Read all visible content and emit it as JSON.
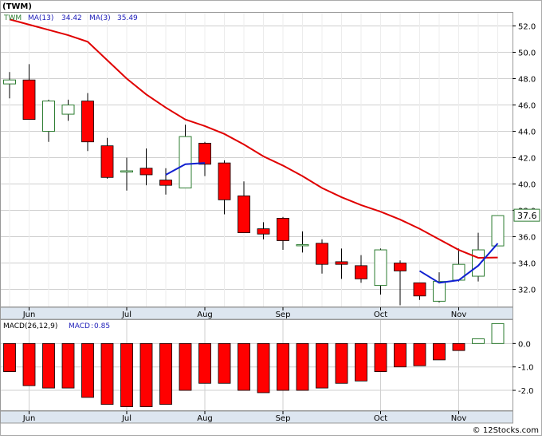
{
  "ticker_label": "(TWM)",
  "footer": "© 12Stocks.com",
  "colors": {
    "up_candle_stroke": "#2e7d32",
    "down_candle_fill": "#ff0000",
    "ma13": "#e00000",
    "ma3": "#1020d0",
    "macd_bar": "#ff0000",
    "grid": "#cfcfcf",
    "axis_band": "#dde6f0",
    "last_price_box": "#2e7d32"
  },
  "chart_data": [
    {
      "type": "candlestick",
      "title": "",
      "legend": [
        {
          "name": "TWM",
          "value": ""
        },
        {
          "name": "MA(13)",
          "value": "34.42"
        },
        {
          "name": "MA(3)",
          "value": "35.49"
        }
      ],
      "x_tick_labels": [
        {
          "label": "Jun",
          "index": 1
        },
        {
          "label": "Jul",
          "index": 6
        },
        {
          "label": "Aug",
          "index": 10
        },
        {
          "label": "Sep",
          "index": 14
        },
        {
          "label": "Oct",
          "index": 19
        },
        {
          "label": "Nov",
          "index": 23
        }
      ],
      "ylim": [
        30.7,
        53.0
      ],
      "y_ticks": [
        32.0,
        34.0,
        36.0,
        38.0,
        40.0,
        42.0,
        44.0,
        46.0,
        48.0,
        50.0,
        52.0
      ],
      "last_price_label": "37.6",
      "grid": true,
      "candles": [
        {
          "open": 47.6,
          "close": 47.9,
          "high": 48.5,
          "low": 46.5
        },
        {
          "open": 47.9,
          "close": 44.9,
          "high": 49.1,
          "low": 44.9
        },
        {
          "open": 44.0,
          "close": 46.3,
          "high": 46.4,
          "low": 43.2
        },
        {
          "open": 45.3,
          "close": 46.0,
          "high": 46.4,
          "low": 44.8
        },
        {
          "open": 46.3,
          "close": 43.2,
          "high": 46.9,
          "low": 42.5
        },
        {
          "open": 42.9,
          "close": 40.5,
          "high": 43.5,
          "low": 40.4
        },
        {
          "open": 41.0,
          "close": 41.0,
          "high": 42.0,
          "low": 39.5
        },
        {
          "open": 41.2,
          "close": 40.7,
          "high": 42.7,
          "low": 39.9
        },
        {
          "open": 40.3,
          "close": 39.9,
          "high": 41.2,
          "low": 39.2
        },
        {
          "open": 39.7,
          "close": 43.6,
          "high": 44.5,
          "low": 39.7
        },
        {
          "open": 43.1,
          "close": 41.5,
          "high": 43.2,
          "low": 40.6
        },
        {
          "open": 41.6,
          "close": 38.8,
          "high": 41.8,
          "low": 37.7
        },
        {
          "open": 39.1,
          "close": 36.3,
          "high": 40.2,
          "low": 36.3
        },
        {
          "open": 36.6,
          "close": 36.2,
          "high": 37.1,
          "low": 35.8
        },
        {
          "open": 37.4,
          "close": 35.7,
          "high": 37.5,
          "low": 35.0
        },
        {
          "open": 35.4,
          "close": 35.4,
          "high": 36.4,
          "low": 34.8
        },
        {
          "open": 35.5,
          "close": 33.9,
          "high": 35.8,
          "low": 33.2
        },
        {
          "open": 34.1,
          "close": 33.9,
          "high": 35.1,
          "low": 32.8
        },
        {
          "open": 33.8,
          "close": 32.8,
          "high": 34.6,
          "low": 32.5
        },
        {
          "open": 32.3,
          "close": 35.0,
          "high": 35.1,
          "low": 31.6
        },
        {
          "open": 34.0,
          "close": 33.4,
          "high": 34.2,
          "low": 30.8
        },
        {
          "open": 32.5,
          "close": 31.5,
          "high": 32.5,
          "low": 31.2
        },
        {
          "open": 31.1,
          "close": 32.6,
          "high": 33.3,
          "low": 31.0
        },
        {
          "open": 32.7,
          "close": 33.9,
          "high": 35.1,
          "low": 32.6
        },
        {
          "open": 33.0,
          "close": 35.0,
          "high": 36.3,
          "low": 32.6
        },
        {
          "open": 35.3,
          "close": 37.6,
          "high": 37.6,
          "low": 35.3
        }
      ],
      "ma13": [
        52.5,
        52.1,
        51.7,
        51.3,
        50.8,
        49.4,
        48.0,
        46.8,
        45.8,
        44.9,
        44.4,
        43.8,
        43.0,
        42.1,
        41.4,
        40.6,
        39.7,
        39.0,
        38.4,
        37.9,
        37.3,
        36.6,
        35.8,
        35.0,
        34.4,
        34.42
      ],
      "ma3": [
        null,
        null,
        null,
        null,
        null,
        null,
        null,
        null,
        40.7,
        41.5,
        41.6,
        null,
        null,
        null,
        null,
        null,
        null,
        null,
        null,
        34.0,
        null,
        33.4,
        32.5,
        32.7,
        33.8,
        35.49
      ]
    },
    {
      "type": "bar",
      "title": "MACD(26,12,9)",
      "legend": [
        {
          "name": "MACD",
          "value": "0.85"
        }
      ],
      "x_tick_labels": [
        {
          "label": "Jun",
          "index": 1
        },
        {
          "label": "Jul",
          "index": 6
        },
        {
          "label": "Aug",
          "index": 10
        },
        {
          "label": "Sep",
          "index": 14
        },
        {
          "label": "Oct",
          "index": 19
        },
        {
          "label": "Nov",
          "index": 23
        }
      ],
      "ylim": [
        -2.85,
        1.0
      ],
      "y_ticks": [
        {
          "value": 0.0,
          "label": "0.0"
        },
        {
          "value": -1.0,
          "label": "-1.0"
        },
        {
          "value": -2.0,
          "label": "-2.0"
        }
      ],
      "grid": true,
      "values": [
        -1.2,
        -1.8,
        -1.9,
        -1.9,
        -2.3,
        -2.6,
        -2.7,
        -2.7,
        -2.6,
        -2.0,
        -1.7,
        -1.7,
        -2.0,
        -2.1,
        -2.0,
        -2.0,
        -1.9,
        -1.7,
        -1.6,
        -1.2,
        -1.0,
        -0.95,
        -0.7,
        -0.3,
        0.2,
        0.85
      ]
    }
  ]
}
